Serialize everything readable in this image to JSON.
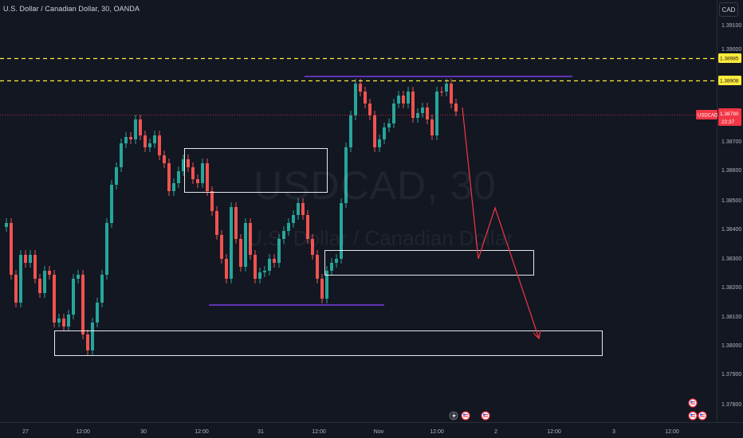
{
  "header": {
    "title": "U.S. Dollar / Canadian Dollar, 30, OANDA",
    "currency_button": "CAD"
  },
  "watermark": {
    "symbol": "USDCAD, 30",
    "description": "U.S. Dollar / Canadian Dollar"
  },
  "price_axis": {
    "labels": [
      "1.39100",
      "1.39000",
      "1.38800",
      "1.38700",
      "1.38600",
      "1.38500",
      "1.38400",
      "1.38300",
      "1.38200",
      "1.38100",
      "1.38000",
      "1.37900",
      "1.37800"
    ]
  },
  "price_tags": {
    "level_1": "1.38985",
    "level_2": "1.38908",
    "current_symbol": "USDCAD",
    "current_price": "1.38790",
    "countdown": "22:37"
  },
  "time_axis": {
    "labels": [
      "27",
      "12:00",
      "30",
      "12:00",
      "31",
      "12:00",
      "Nov",
      "12:00",
      "2",
      "12:00",
      "3",
      "12:00"
    ]
  },
  "colors": {
    "background": "#131722",
    "bull": "#26a69a",
    "bear": "#ef5350",
    "dashed_levels": "#ffeb3b",
    "trend_lines": "#7b3fe4",
    "projection": "#f23645",
    "current_price": "#f23645"
  },
  "icons": [
    "flash-icon",
    "us-flag-icon",
    "event-flag-icon"
  ]
}
